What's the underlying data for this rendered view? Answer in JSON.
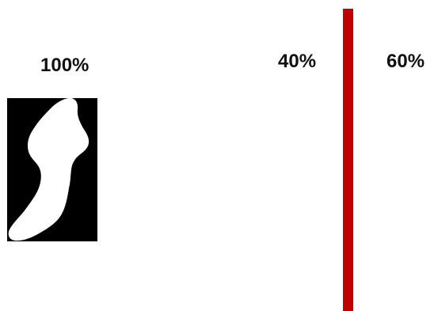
{
  "labels": {
    "left": "100%",
    "middle": "40%",
    "right": "60%"
  },
  "colors": {
    "divider": "#c00000",
    "mask_background": "#000000",
    "mask_foreground": "#ffffff",
    "text": "#111111"
  }
}
